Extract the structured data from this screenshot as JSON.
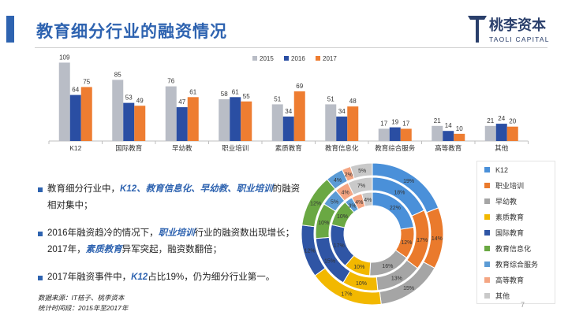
{
  "title": "教育细分行业的融资情况",
  "logo": {
    "name": "桃李资本",
    "sub": "TAOLI CAPITAL"
  },
  "page_number": "7",
  "colors": {
    "y2015": "#b9bdc6",
    "y2016": "#2a4ea3",
    "y2017": "#ee7d31",
    "accent": "#2e63b0"
  },
  "chart_data": [
    {
      "type": "bar",
      "categories": [
        "K12",
        "国际教育",
        "早幼教",
        "职业培训",
        "素质教育",
        "教育信息化",
        "教育综合服务",
        "高等教育",
        "其他"
      ],
      "series": [
        {
          "name": "2015",
          "values": [
            109,
            85,
            76,
            58,
            51,
            51,
            17,
            21,
            21
          ]
        },
        {
          "name": "2016",
          "values": [
            64,
            53,
            47,
            61,
            34,
            34,
            19,
            14,
            24
          ]
        },
        {
          "name": "2017",
          "values": [
            75,
            49,
            61,
            55,
            69,
            48,
            17,
            10,
            20
          ]
        }
      ],
      "ylim": [
        0,
        115
      ],
      "legend": "top-right"
    },
    {
      "type": "pie",
      "subtype": "donut",
      "categories": [
        "K12",
        "职业培训",
        "早幼教",
        "素质教育",
        "国际教育",
        "教育信息化",
        "教育综合服务",
        "高等教育",
        "其他"
      ],
      "colors": [
        "#4a90d9",
        "#ea7a2c",
        "#a5a5a5",
        "#f2b800",
        "#2f55a5",
        "#6aa843",
        "#5b9bd5",
        "#f4a582",
        "#c9c9c9"
      ],
      "rings": [
        {
          "name": "outer",
          "values": [
            19,
            14,
            15,
            17,
            12,
            12,
            4,
            2,
            5
          ]
        },
        {
          "name": "middle",
          "values": [
            18,
            17,
            13,
            10,
            15,
            10,
            5,
            4,
            7
          ]
        },
        {
          "name": "inner",
          "values": [
            22,
            12,
            16,
            10,
            17,
            10,
            3,
            4,
            4
          ]
        }
      ],
      "legend": "right"
    }
  ],
  "bullets": [
    {
      "parts": [
        "教育细分行业中，",
        "K12、教育信息化、早幼教、职业培训",
        "的融资相对集中；"
      ]
    },
    {
      "parts": [
        "2016年融资趋冷的情况下，",
        "职业培训",
        "行业的融资数出现增长；2017年，",
        "素质教育",
        "异军突起，融资数翻倍；"
      ]
    },
    {
      "parts": [
        "2017年融资事件中，",
        "K12",
        "占比19%，仍为细分行业第一。"
      ]
    }
  ],
  "source": [
    "数据来源：IT桔子、桃李资本",
    "统计时间段：2015年至2017年"
  ]
}
